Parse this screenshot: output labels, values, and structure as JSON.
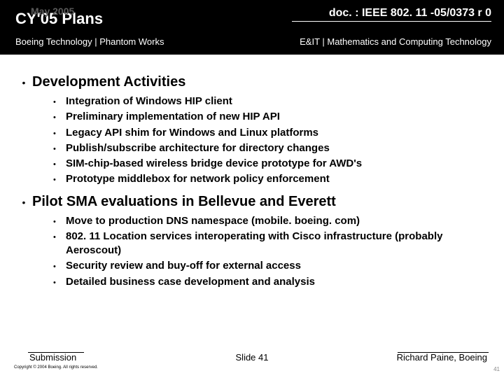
{
  "header": {
    "date_overlay": "May 2005",
    "title": "CY'05 Plans",
    "doc_ref": "doc. : IEEE 802. 11 -05/0373 r 0",
    "sub_left": "Boeing Technology | Phantom Works",
    "sub_right": "E&IT | Mathematics and Computing Technology"
  },
  "sections": [
    {
      "heading": "Development Activities",
      "items": [
        "Integration of Windows HIP client",
        "Preliminary implementation of new HIP API",
        "Legacy API shim for Windows and Linux platforms",
        "Publish/subscribe architecture for directory changes",
        "SIM-chip-based wireless bridge device prototype for AWD's",
        "Prototype middlebox for network policy enforcement"
      ]
    },
    {
      "heading": "Pilot SMA evaluations in Bellevue and Everett",
      "items": [
        "Move to production DNS namespace (mobile. boeing. com)",
        "802. 11 Location services interoperating with Cisco infrastructure (probably Aeroscout)",
        "Security review and buy-off for external access",
        "Detailed business case development and analysis"
      ]
    }
  ],
  "footer": {
    "submission": "Submission",
    "copyright": "Copyright © 2004 Boeing. All rights reserved.",
    "slide": "Slide 41",
    "author": "Richard Paine, Boeing",
    "page_corner": "41"
  },
  "style": {
    "header_bg": "#000000",
    "header_fg": "#ffffff",
    "body_bg": "#ffffff",
    "body_fg": "#000000",
    "title_fontsize": 22,
    "docref_fontsize": 16,
    "sub_fontsize": 13,
    "heading_fontsize": 20,
    "item_fontsize": 15,
    "footer_fontsize": 13
  }
}
